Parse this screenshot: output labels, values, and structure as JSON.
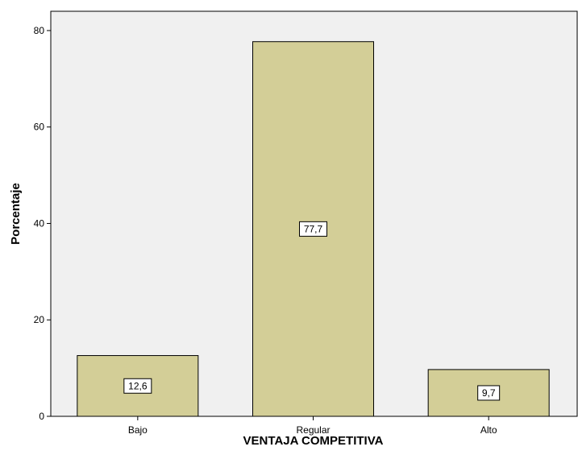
{
  "chart_data": {
    "type": "bar",
    "categories": [
      "Bajo",
      "Regular",
      "Alto"
    ],
    "values": [
      12.6,
      77.7,
      9.7
    ],
    "data_labels": [
      "12,6",
      "77,7",
      "9,7"
    ],
    "title": "",
    "xlabel": "VENTAJA COMPETITIVA",
    "ylabel": "Porcentaje",
    "ylim": [
      0,
      80
    ],
    "yticks": [
      0,
      20,
      40,
      60,
      80
    ],
    "ytick_labels": [
      "0",
      "20",
      "40",
      "60",
      "80"
    ],
    "grid": false,
    "legend": "none",
    "colors": {
      "bar_fill": "#d3ce97",
      "bar_stroke": "#000000",
      "plot_background": "#f0f0f0",
      "page_background": "#ffffff",
      "label_box_fill": "#ffffff"
    }
  }
}
